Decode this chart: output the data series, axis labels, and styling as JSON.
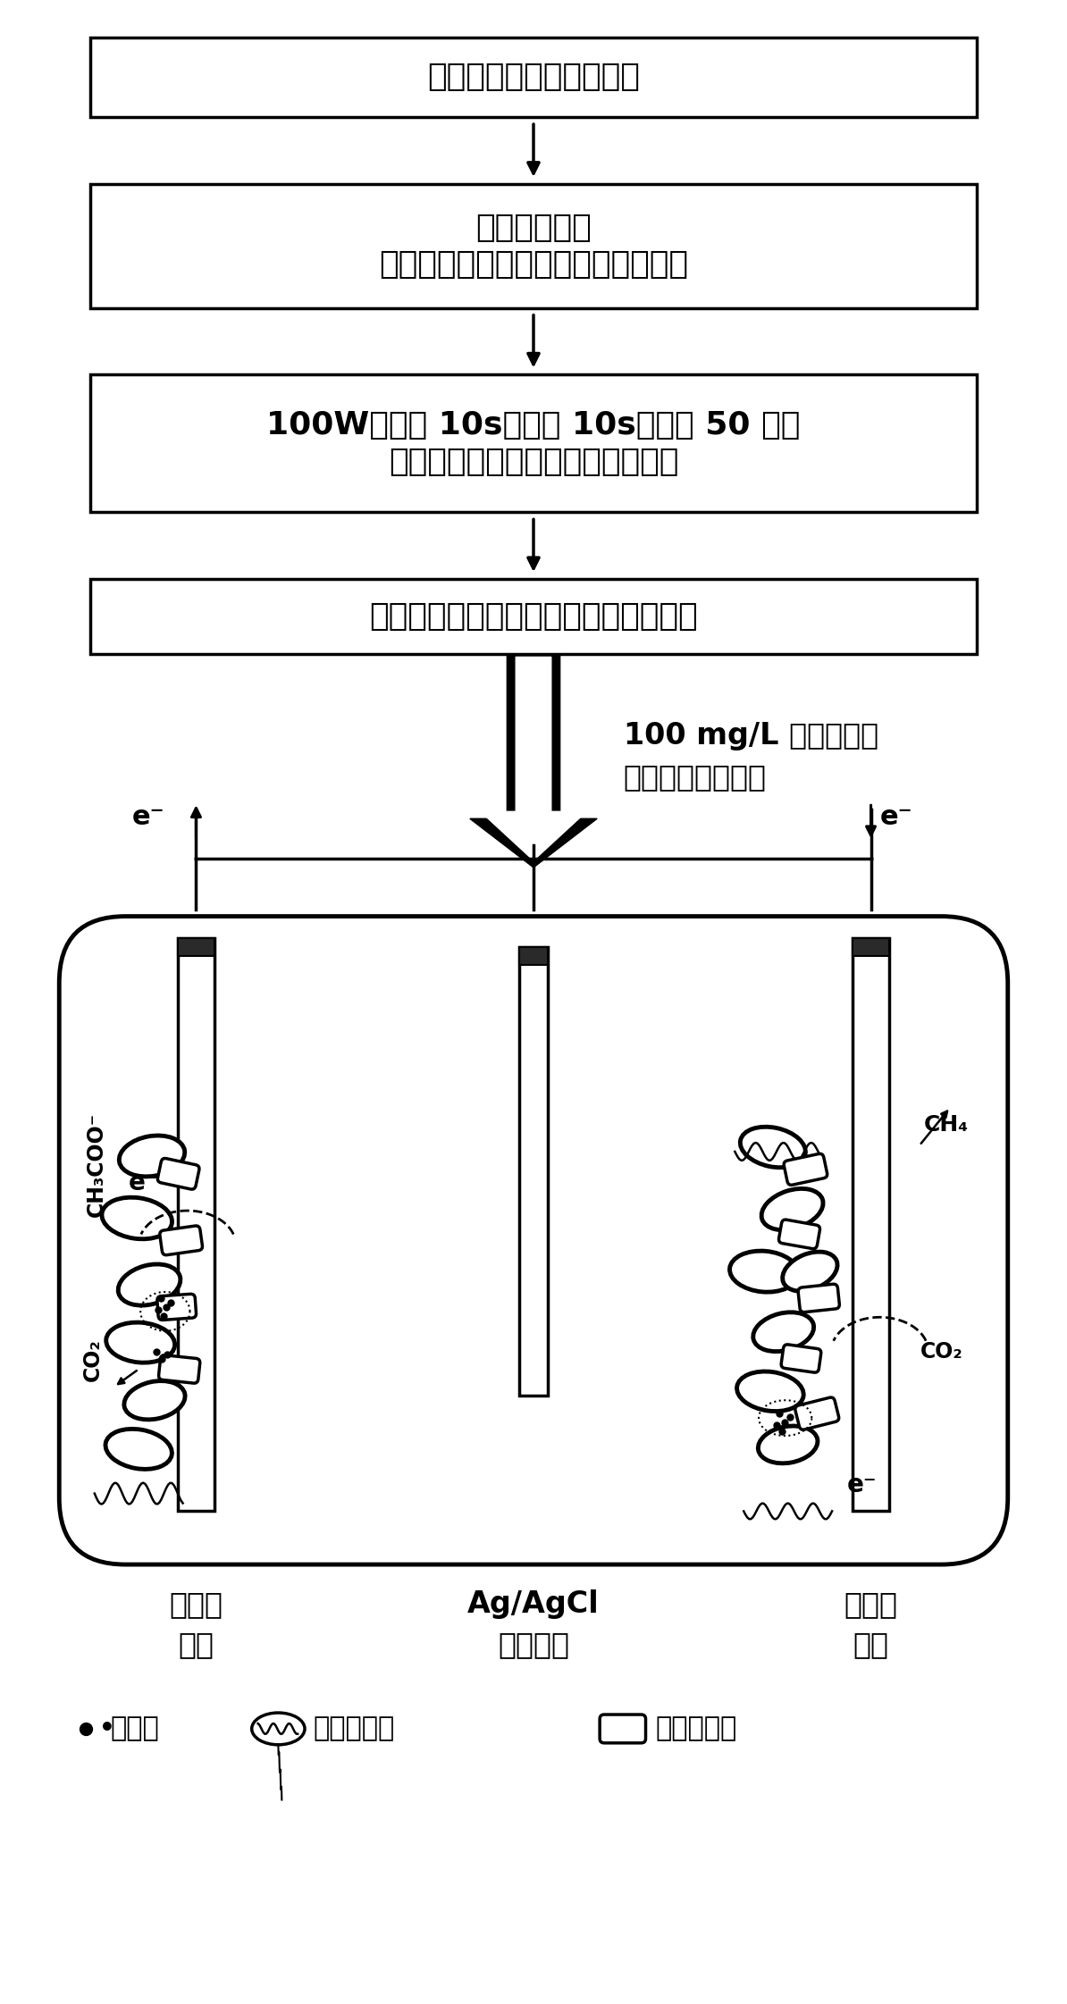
{
  "box1_text": "处于对数生长期的磁螺菌",
  "box2_line1": "离心弃去上清液收集菌体，重新悬浮",
  "box2_line2": "于磷酸缓冲液",
  "box3_line1": "在冰浴环境中超声破碎细胞（功率",
  "box3_line2": "100W，破碎 10s，间隔 10s，重复 50 次）",
  "box4_text": "磁铁吸附分离并洗涤得到纯化的磁小体",
  "side_text_line1": "100 mg/L 磁小体加入",
  "side_text_line2": "微生物电发酵系统",
  "label_anode_line1": "石墨棒",
  "label_anode_line2": "阳极",
  "label_ref_line1": "Ag/AgCl",
  "label_ref_line2": "参比电极",
  "label_cathode_line1": "石墨棒",
  "label_cathode_line2": "阴极",
  "legend_mag_text": "磁小体",
  "legend_electro_text": "电活性细菌",
  "legend_methano_text": "产甲烷古菌",
  "bg_color": "#ffffff"
}
